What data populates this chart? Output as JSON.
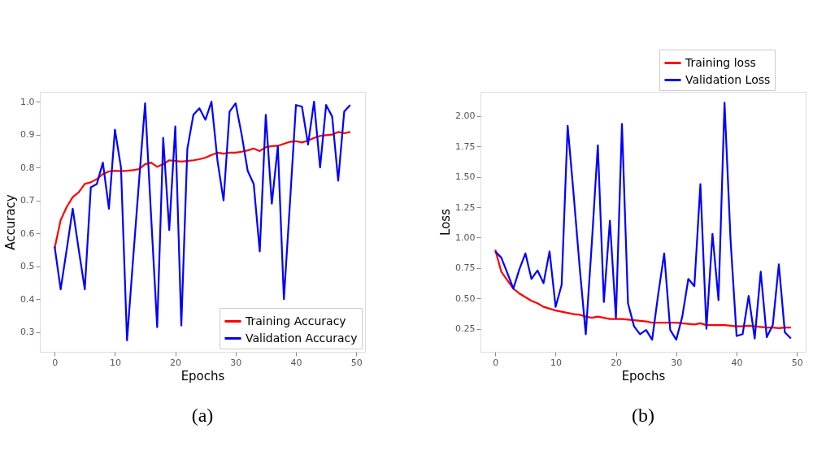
{
  "chart_data": [
    {
      "type": "line",
      "xlabel": "Epochs",
      "ylabel": "Accuracy",
      "annotations": [
        "(a)"
      ],
      "x": [
        0,
        1,
        2,
        3,
        4,
        5,
        6,
        7,
        8,
        9,
        10,
        11,
        12,
        13,
        14,
        15,
        16,
        17,
        18,
        19,
        20,
        21,
        22,
        23,
        24,
        25,
        26,
        27,
        28,
        29,
        30,
        31,
        32,
        33,
        34,
        35,
        36,
        37,
        38,
        39,
        40,
        41,
        42,
        43,
        44,
        45,
        46,
        47,
        48,
        49
      ],
      "xlim": [
        -2.45,
        51.45
      ],
      "xticks": [
        0,
        10,
        20,
        30,
        40,
        50
      ],
      "ylim": [
        0.24,
        1.03
      ],
      "yticks": [
        {
          "value": 0.3,
          "label": "0.3"
        },
        {
          "value": 0.4,
          "label": "0.4"
        },
        {
          "value": 0.5,
          "label": "0.5"
        },
        {
          "value": 0.6,
          "label": "0.6"
        },
        {
          "value": 0.7,
          "label": "0.7"
        },
        {
          "value": 0.8,
          "label": "0.8"
        },
        {
          "value": 0.9,
          "label": "0.9"
        },
        {
          "value": 1.0,
          "label": "1.0"
        }
      ],
      "grid": false,
      "legend": "bottom right",
      "line_style": "solid",
      "marker": "none",
      "series": [
        {
          "name": "Training Accuracy",
          "color": "#ff0000",
          "values": [
            0.555,
            0.64,
            0.68,
            0.71,
            0.725,
            0.75,
            0.755,
            0.765,
            0.78,
            0.788,
            0.79,
            0.789,
            0.79,
            0.792,
            0.795,
            0.81,
            0.815,
            0.802,
            0.81,
            0.822,
            0.82,
            0.818,
            0.82,
            0.822,
            0.825,
            0.83,
            0.838,
            0.845,
            0.842,
            0.845,
            0.845,
            0.848,
            0.852,
            0.858,
            0.85,
            0.862,
            0.865,
            0.866,
            0.872,
            0.878,
            0.88,
            0.876,
            0.882,
            0.89,
            0.896,
            0.898,
            0.9,
            0.908,
            0.904,
            0.908
          ]
        },
        {
          "name": "Validation Accuracy",
          "color": "#0000ff",
          "values": [
            0.56,
            0.43,
            0.55,
            0.675,
            0.55,
            0.43,
            0.74,
            0.75,
            0.815,
            0.675,
            0.915,
            0.8,
            0.275,
            0.52,
            0.76,
            0.995,
            0.65,
            0.315,
            0.89,
            0.61,
            0.925,
            0.32,
            0.857,
            0.96,
            0.98,
            0.945,
            1.0,
            0.82,
            0.7,
            0.97,
            0.995,
            0.9,
            0.79,
            0.75,
            0.545,
            0.96,
            0.69,
            0.865,
            0.4,
            0.69,
            0.99,
            0.985,
            0.87,
            1.0,
            0.8,
            0.99,
            0.955,
            0.76,
            0.97,
            0.99
          ]
        }
      ]
    },
    {
      "type": "line",
      "xlabel": "Epochs",
      "ylabel": "Loss",
      "annotations": [
        "(b)"
      ],
      "x": [
        0,
        1,
        2,
        3,
        4,
        5,
        6,
        7,
        8,
        9,
        10,
        11,
        12,
        13,
        14,
        15,
        16,
        17,
        18,
        19,
        20,
        21,
        22,
        23,
        24,
        25,
        26,
        27,
        28,
        29,
        30,
        31,
        32,
        33,
        34,
        35,
        36,
        37,
        38,
        39,
        40,
        41,
        42,
        43,
        44,
        45,
        46,
        47,
        48,
        49
      ],
      "xlim": [
        -2.45,
        51.45
      ],
      "xticks": [
        0,
        10,
        20,
        30,
        40,
        50
      ],
      "ylim": [
        0.06,
        2.2
      ],
      "yticks": [
        {
          "value": 0.25,
          "label": "0.25"
        },
        {
          "value": 0.5,
          "label": "0.50"
        },
        {
          "value": 0.75,
          "label": "0.75"
        },
        {
          "value": 1.0,
          "label": "1.00"
        },
        {
          "value": 1.25,
          "label": "1.25"
        },
        {
          "value": 1.5,
          "label": "1.50"
        },
        {
          "value": 1.75,
          "label": "1.75"
        },
        {
          "value": 2.0,
          "label": "2.00"
        }
      ],
      "grid": false,
      "legend": "top right",
      "line_style": "solid",
      "marker": "none",
      "series": [
        {
          "name": "Training loss",
          "color": "#ff0000",
          "values": [
            0.9,
            0.72,
            0.65,
            0.58,
            0.54,
            0.51,
            0.48,
            0.46,
            0.43,
            0.415,
            0.4,
            0.39,
            0.38,
            0.37,
            0.365,
            0.35,
            0.34,
            0.35,
            0.34,
            0.33,
            0.33,
            0.33,
            0.325,
            0.32,
            0.315,
            0.31,
            0.3,
            0.3,
            0.3,
            0.3,
            0.3,
            0.295,
            0.29,
            0.285,
            0.295,
            0.28,
            0.28,
            0.28,
            0.28,
            0.275,
            0.27,
            0.27,
            0.275,
            0.27,
            0.265,
            0.26,
            0.26,
            0.255,
            0.26,
            0.26
          ]
        },
        {
          "name": "Validation Loss",
          "color": "#0000ff",
          "values": [
            0.886,
            0.835,
            0.71,
            0.58,
            0.74,
            0.87,
            0.66,
            0.73,
            0.625,
            0.886,
            0.43,
            0.61,
            1.92,
            1.35,
            0.75,
            0.205,
            0.95,
            1.76,
            0.47,
            1.14,
            0.34,
            1.935,
            0.46,
            0.27,
            0.205,
            0.24,
            0.16,
            0.53,
            0.87,
            0.24,
            0.16,
            0.35,
            0.66,
            0.6,
            1.44,
            0.25,
            1.03,
            0.485,
            2.11,
            0.98,
            0.19,
            0.205,
            0.52,
            0.17,
            0.72,
            0.18,
            0.28,
            0.78,
            0.22,
            0.17
          ]
        }
      ]
    }
  ]
}
